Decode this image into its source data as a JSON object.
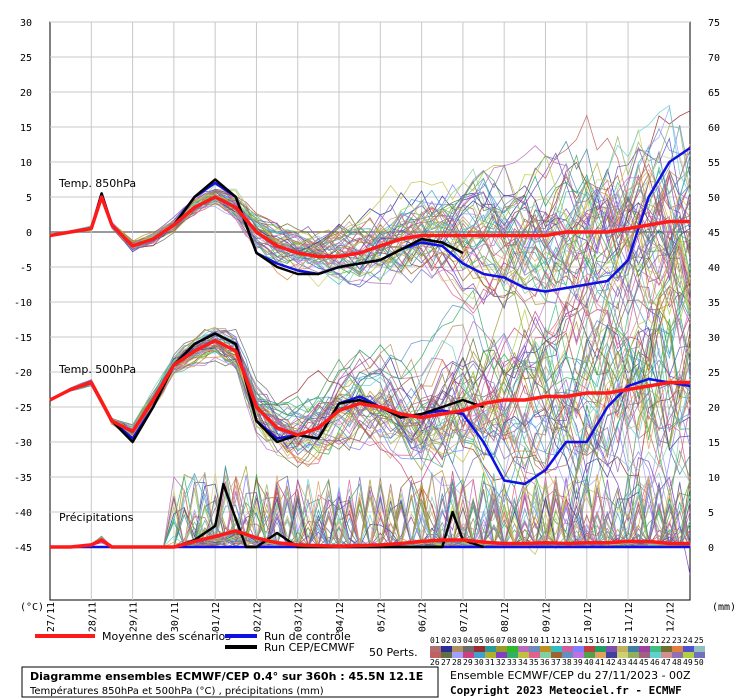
{
  "chart_data": {
    "type": "line",
    "panels": [
      {
        "label": "Temp. 850hPa",
        "mean": [
          [
            0,
            -0.5
          ],
          [
            0.5,
            0
          ],
          [
            1,
            0.5
          ],
          [
            1.25,
            5
          ],
          [
            1.5,
            1
          ],
          [
            2,
            -2
          ],
          [
            2.5,
            -1
          ],
          [
            3,
            1
          ],
          [
            3.5,
            3.5
          ],
          [
            4,
            5
          ],
          [
            4.5,
            3.5
          ],
          [
            5,
            0
          ],
          [
            5.5,
            -2
          ],
          [
            6,
            -3
          ],
          [
            6.5,
            -3.5
          ],
          [
            7,
            -3.5
          ],
          [
            7.5,
            -3
          ],
          [
            8,
            -2
          ],
          [
            8.5,
            -1
          ],
          [
            9,
            -0.5
          ],
          [
            9.5,
            -0.5
          ],
          [
            10,
            -0.5
          ],
          [
            10.5,
            -0.5
          ],
          [
            11,
            -0.5
          ],
          [
            11.5,
            -0.5
          ],
          [
            12,
            -0.5
          ],
          [
            12.5,
            0
          ],
          [
            13,
            0
          ],
          [
            13.5,
            0
          ],
          [
            14,
            0.5
          ],
          [
            14.5,
            1
          ],
          [
            15,
            1.5
          ],
          [
            15.5,
            1.5
          ]
        ],
        "control": [
          [
            0,
            -0.5
          ],
          [
            0.5,
            0
          ],
          [
            1,
            0.5
          ],
          [
            1.25,
            5.5
          ],
          [
            1.5,
            1
          ],
          [
            2,
            -2
          ],
          [
            2.5,
            -1
          ],
          [
            3,
            1
          ],
          [
            3.5,
            5
          ],
          [
            4,
            7
          ],
          [
            4.5,
            5
          ],
          [
            5,
            -3
          ],
          [
            5.5,
            -4.5
          ],
          [
            6,
            -5.5
          ],
          [
            6.5,
            -6
          ],
          [
            7,
            -5
          ],
          [
            7.5,
            -4.5
          ],
          [
            8,
            -4
          ],
          [
            8.5,
            -2.5
          ],
          [
            9,
            -1.5
          ],
          [
            9.5,
            -2
          ],
          [
            10,
            -4.5
          ],
          [
            10.5,
            -6
          ],
          [
            11,
            -6.5
          ],
          [
            11.5,
            -8
          ],
          [
            12,
            -8.5
          ],
          [
            12.5,
            -8
          ],
          [
            13,
            -7.5
          ],
          [
            13.5,
            -7
          ],
          [
            14,
            -4
          ],
          [
            14.5,
            5
          ],
          [
            15,
            10
          ],
          [
            15.5,
            12
          ]
        ],
        "cep": [
          [
            0,
            -0.5
          ],
          [
            0.5,
            0
          ],
          [
            1,
            0.5
          ],
          [
            1.25,
            5.5
          ],
          [
            1.5,
            1
          ],
          [
            2,
            -2
          ],
          [
            2.5,
            -1
          ],
          [
            3,
            1
          ],
          [
            3.5,
            5
          ],
          [
            4,
            7.5
          ],
          [
            4.5,
            5
          ],
          [
            5,
            -3
          ],
          [
            5.5,
            -5
          ],
          [
            6,
            -6
          ],
          [
            6.5,
            -6
          ],
          [
            7,
            -5
          ],
          [
            7.5,
            -4.5
          ],
          [
            8,
            -4
          ],
          [
            8.5,
            -2.5
          ],
          [
            9,
            -1
          ],
          [
            9.5,
            -1.5
          ],
          [
            10,
            -3
          ]
        ]
      },
      {
        "label": "Temp. 500hPa",
        "mean": [
          [
            0,
            -24
          ],
          [
            0.5,
            -22.5
          ],
          [
            1,
            -21.5
          ],
          [
            1.5,
            -27
          ],
          [
            2,
            -28.5
          ],
          [
            2.5,
            -24
          ],
          [
            3,
            -19
          ],
          [
            3.5,
            -17
          ],
          [
            4,
            -15.5
          ],
          [
            4.5,
            -17
          ],
          [
            5,
            -25
          ],
          [
            5.5,
            -28
          ],
          [
            6,
            -29
          ],
          [
            6.5,
            -28
          ],
          [
            7,
            -25.5
          ],
          [
            7.5,
            -24.5
          ],
          [
            8,
            -25
          ],
          [
            8.5,
            -26
          ],
          [
            9,
            -26.5
          ],
          [
            9.5,
            -26
          ],
          [
            10,
            -25.5
          ],
          [
            10.5,
            -24.5
          ],
          [
            11,
            -24
          ],
          [
            11.5,
            -24
          ],
          [
            12,
            -23.5
          ],
          [
            12.5,
            -23.5
          ],
          [
            13,
            -23
          ],
          [
            13.5,
            -23
          ],
          [
            14,
            -22.5
          ],
          [
            14.5,
            -22
          ],
          [
            15,
            -21.5
          ],
          [
            15.5,
            -21.5
          ]
        ],
        "control": [
          [
            0,
            -24
          ],
          [
            0.5,
            -22.5
          ],
          [
            1,
            -21.5
          ],
          [
            1.5,
            -27
          ],
          [
            2,
            -29.5
          ],
          [
            2.5,
            -25
          ],
          [
            3,
            -19
          ],
          [
            3.5,
            -16
          ],
          [
            4,
            -14.5
          ],
          [
            4.5,
            -16
          ],
          [
            5,
            -27
          ],
          [
            5.5,
            -29.5
          ],
          [
            6,
            -29
          ],
          [
            6.5,
            -29.5
          ],
          [
            7,
            -24.5
          ],
          [
            7.5,
            -23.5
          ],
          [
            8,
            -25
          ],
          [
            8.5,
            -26.5
          ],
          [
            9,
            -26
          ],
          [
            9.5,
            -25.5
          ],
          [
            10,
            -26
          ],
          [
            10.5,
            -30
          ],
          [
            11,
            -35.5
          ],
          [
            11.5,
            -36
          ],
          [
            12,
            -34
          ],
          [
            12.5,
            -30
          ],
          [
            13,
            -30
          ],
          [
            13.5,
            -25
          ],
          [
            14,
            -22
          ],
          [
            14.5,
            -21
          ],
          [
            15,
            -21.5
          ],
          [
            15.5,
            -22
          ]
        ],
        "cep": [
          [
            0,
            -24
          ],
          [
            0.5,
            -22.5
          ],
          [
            1,
            -21.5
          ],
          [
            1.5,
            -27
          ],
          [
            2,
            -30
          ],
          [
            2.5,
            -25
          ],
          [
            3,
            -19
          ],
          [
            3.5,
            -16
          ],
          [
            4,
            -14.5
          ],
          [
            4.5,
            -16
          ],
          [
            5,
            -27
          ],
          [
            5.5,
            -30
          ],
          [
            6,
            -29
          ],
          [
            6.5,
            -29.5
          ],
          [
            7,
            -24.5
          ],
          [
            7.5,
            -24
          ],
          [
            8,
            -25
          ],
          [
            8.5,
            -26.5
          ],
          [
            9,
            -26
          ],
          [
            9.5,
            -25
          ],
          [
            10,
            -24
          ],
          [
            10.5,
            -25
          ]
        ]
      },
      {
        "label": "Précipitations",
        "mean": [
          [
            0,
            0
          ],
          [
            0.5,
            0
          ],
          [
            1,
            0.3
          ],
          [
            1.25,
            1
          ],
          [
            1.5,
            0
          ],
          [
            2,
            0
          ],
          [
            2.5,
            0
          ],
          [
            3,
            0
          ],
          [
            3.5,
            0.8
          ],
          [
            4,
            1.5
          ],
          [
            4.5,
            2.3
          ],
          [
            5,
            1.3
          ],
          [
            5.5,
            0.6
          ],
          [
            6,
            0.3
          ],
          [
            6.5,
            0.2
          ],
          [
            7,
            0.1
          ],
          [
            7.5,
            0.2
          ],
          [
            8,
            0.3
          ],
          [
            8.5,
            0.5
          ],
          [
            9,
            0.8
          ],
          [
            9.5,
            1
          ],
          [
            10,
            1
          ],
          [
            10.5,
            0.7
          ],
          [
            11,
            0.5
          ],
          [
            11.5,
            0.5
          ],
          [
            12,
            0.6
          ],
          [
            12.5,
            0.5
          ],
          [
            13,
            0.6
          ],
          [
            13.5,
            0.6
          ],
          [
            14,
            0.8
          ],
          [
            14.5,
            0.8
          ],
          [
            15,
            0.5
          ],
          [
            15.5,
            0.5
          ]
        ],
        "control": [
          [
            0,
            0
          ],
          [
            1,
            0
          ],
          [
            1.5,
            0
          ],
          [
            2,
            0
          ],
          [
            4,
            0
          ],
          [
            8,
            0
          ],
          [
            10,
            0
          ],
          [
            12,
            0
          ],
          [
            14,
            0
          ],
          [
            15.5,
            0
          ]
        ],
        "cep": [
          [
            0,
            0
          ],
          [
            0.5,
            0
          ],
          [
            1,
            0.3
          ],
          [
            1.25,
            1
          ],
          [
            1.5,
            0
          ],
          [
            2,
            0
          ],
          [
            2.5,
            0
          ],
          [
            3,
            0
          ],
          [
            3.5,
            1
          ],
          [
            4,
            3
          ],
          [
            4.2,
            9
          ],
          [
            4.5,
            4
          ],
          [
            4.75,
            0
          ],
          [
            5,
            0
          ],
          [
            5.5,
            2
          ],
          [
            6,
            0
          ],
          [
            7,
            0
          ],
          [
            8,
            0
          ],
          [
            9,
            0
          ],
          [
            9.5,
            0
          ],
          [
            9.75,
            5
          ],
          [
            10,
            1
          ],
          [
            10.5,
            0
          ]
        ]
      }
    ],
    "left_axis": {
      "label": "(°C)",
      "ticks": [
        "30",
        "25",
        "20",
        "15",
        "10",
        "5",
        "0",
        "-5",
        "-10",
        "-15",
        "-20",
        "-25",
        "-30",
        "-35",
        "-40",
        "-45"
      ],
      "ylim": [
        -45,
        30
      ]
    },
    "right_axis": {
      "label": "(mm)",
      "ticks": [
        "75",
        "70",
        "65",
        "60",
        "55",
        "50",
        "45",
        "40",
        "35",
        "30",
        "25",
        "20",
        "15",
        "10",
        "5",
        "0"
      ],
      "ylim": [
        0,
        75
      ]
    },
    "x_ticks": [
      "27/11",
      "28/11",
      "29/11",
      "30/11",
      "01/12",
      "02/12",
      "03/12",
      "04/12",
      "05/12",
      "06/12",
      "07/12",
      "08/12",
      "09/12",
      "10/12",
      "11/12",
      "12/12"
    ],
    "grid": true
  },
  "legend": {
    "mean": "Moyenne des scénarios",
    "control": "Run de contrôle",
    "cep": "Run CEP/ECMWF",
    "perts": "50 Perts.",
    "members_top": [
      "01",
      "02",
      "03",
      "04",
      "05",
      "06",
      "07",
      "08",
      "09",
      "10",
      "11",
      "12",
      "13",
      "14",
      "15",
      "16",
      "17",
      "18",
      "19",
      "20",
      "21",
      "22",
      "23",
      "24",
      "25"
    ],
    "members_bottom": [
      "26",
      "27",
      "28",
      "29",
      "30",
      "31",
      "32",
      "33",
      "34",
      "35",
      "36",
      "37",
      "38",
      "39",
      "40",
      "41",
      "42",
      "43",
      "44",
      "45",
      "46",
      "47",
      "48",
      "49",
      "50"
    ]
  },
  "footer": {
    "title": "Diagramme ensembles ECMWF/CEP 0.4° sur 360h : 45.5N 12.1E",
    "subtitle": "Températures 850hPa et 500hPa (°C) , précipitations (mm)",
    "run": "Ensemble ECMWF/CEP du 27/11/2023 - 00Z",
    "copyright": "Copyright 2023 Meteociel.fr - ECMWF"
  },
  "colors": {
    "mean": "#ff1a1a",
    "control": "#1010e0",
    "cep": "#000000",
    "grid": "#c8c8c8",
    "zero_line": "#7a7a7a",
    "members": [
      "#b07070",
      "#2d2d9a",
      "#b09060",
      "#6b6b6b",
      "#9a2d2d",
      "#2d9a9a",
      "#9a9a2d",
      "#2dbb2d",
      "#bb6bbb",
      "#6b8bbb",
      "#c09020",
      "#30c0c0",
      "#d060a0",
      "#8080ff",
      "#c04040",
      "#20a060",
      "#8050b0",
      "#c0b060",
      "#4080a0",
      "#a040a0",
      "#40c080",
      "#707030",
      "#e08040",
      "#5050d0",
      "#90c0c0",
      "#c06060",
      "#607040",
      "#a0a0ff",
      "#d04080",
      "#40a0d0",
      "#b0b030",
      "#8040c0",
      "#30b060",
      "#c0c040",
      "#e06090",
      "#80d0a0",
      "#a06030",
      "#6090c0",
      "#c070e0",
      "#50a050",
      "#e0a060",
      "#4040a0",
      "#d0d070",
      "#90b060",
      "#a06080",
      "#60d0d0",
      "#d09090",
      "#9070b0",
      "#b0d040",
      "#7070c0"
    ]
  }
}
